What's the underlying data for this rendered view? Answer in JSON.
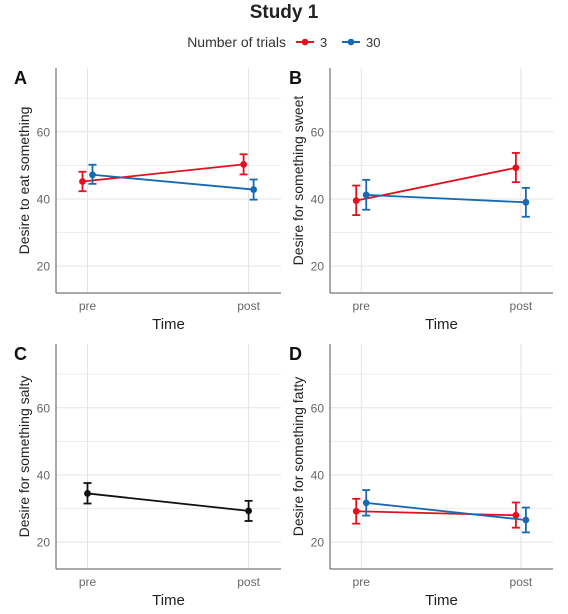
{
  "figure_title": "Study 1",
  "legend": {
    "title": "Number of trials",
    "entries": [
      {
        "label": "3",
        "color": "#e3101f"
      },
      {
        "label": "30",
        "color": "#1669b3"
      }
    ]
  },
  "colors": {
    "single": "#111111",
    "grid": "#e4e4e4",
    "axis": "#555555"
  },
  "chart_data": [
    {
      "panel": "A",
      "type": "line",
      "xlabel": "Time",
      "ylabel": "Desire to eat something",
      "categories": [
        "pre",
        "post"
      ],
      "ylim": [
        12,
        79
      ],
      "yticks": [
        20,
        40,
        60
      ],
      "grid": true,
      "series": [
        {
          "name": "3",
          "values": [
            45.2,
            50.3
          ],
          "error": [
            [
              42.3,
              48.1
            ],
            [
              47.3,
              53.3
            ]
          ]
        },
        {
          "name": "30",
          "values": [
            47.2,
            42.8
          ],
          "error": [
            [
              44.5,
              50.2
            ],
            [
              39.8,
              45.8
            ]
          ]
        }
      ]
    },
    {
      "panel": "B",
      "type": "line",
      "xlabel": "Time",
      "ylabel": "Desire for something sweet",
      "categories": [
        "pre",
        "post"
      ],
      "ylim": [
        12,
        79
      ],
      "yticks": [
        20,
        40,
        60
      ],
      "grid": true,
      "series": [
        {
          "name": "3",
          "values": [
            39.5,
            49.3
          ],
          "error": [
            [
              35.2,
              44.0
            ],
            [
              45.0,
              53.7
            ]
          ]
        },
        {
          "name": "30",
          "values": [
            41.2,
            39.0
          ],
          "error": [
            [
              36.8,
              45.7
            ],
            [
              34.7,
              43.3
            ]
          ]
        }
      ]
    },
    {
      "panel": "C",
      "type": "line",
      "xlabel": "Time",
      "ylabel": "Desire for something salty",
      "categories": [
        "pre",
        "post"
      ],
      "ylim": [
        12,
        79
      ],
      "yticks": [
        20,
        40,
        60
      ],
      "grid": true,
      "series": [
        {
          "values": [
            34.5,
            29.3
          ],
          "error": [
            [
              31.5,
              37.6
            ],
            [
              26.3,
              32.3
            ]
          ]
        }
      ]
    },
    {
      "panel": "D",
      "type": "line",
      "xlabel": "Time",
      "ylabel": "Desire for something fatty",
      "categories": [
        "pre",
        "post"
      ],
      "ylim": [
        12,
        79
      ],
      "yticks": [
        20,
        40,
        60
      ],
      "grid": true,
      "series": [
        {
          "name": "3",
          "values": [
            29.2,
            28.0
          ],
          "error": [
            [
              25.5,
              32.9
            ],
            [
              24.3,
              31.8
            ]
          ]
        },
        {
          "name": "30",
          "values": [
            31.7,
            26.6
          ],
          "error": [
            [
              27.9,
              35.5
            ],
            [
              22.9,
              30.3
            ]
          ]
        }
      ]
    }
  ]
}
